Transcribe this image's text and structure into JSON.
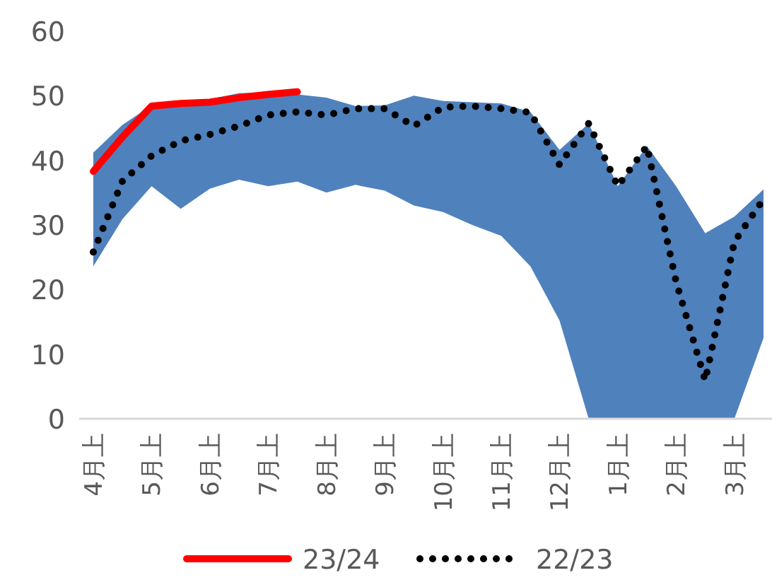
{
  "chart_data": {
    "type": "area",
    "categories": [
      "4月上",
      null,
      "5月上",
      null,
      "6月上",
      null,
      "7月上",
      null,
      "8月上",
      null,
      "9月上",
      null,
      "10月上",
      null,
      "11月上",
      null,
      "12月上",
      null,
      "1月上",
      null,
      "2月上",
      null,
      "3月上",
      null
    ],
    "series": [
      {
        "color": "#4f81bd",
        "values": [
          41.2,
          45.5,
          48.5,
          49,
          49.5,
          50.4,
          50.5,
          50.2,
          49.7,
          48.4,
          48.5,
          50,
          49.2,
          49,
          48.8,
          47.5,
          41.6,
          45.7,
          36,
          42.2,
          36,
          28.7,
          31.3,
          35.5
        ]
      },
      {
        "color": "#ffffff",
        "values": [
          23.6,
          30.9,
          36,
          32.5,
          35.6,
          37,
          36,
          36.7,
          35,
          36.2,
          35.3,
          33,
          32,
          30,
          28.3,
          23.6,
          15.2,
          0,
          0,
          0,
          0,
          0,
          0,
          12.5
        ]
      },
      {
        "type": "line",
        "name": "23/24",
        "color": "#ff0000",
        "line_style": "solid",
        "values": [
          38.3,
          43.6,
          48.4,
          48.8,
          49,
          49.7,
          50.2,
          50.6,
          null,
          null,
          null,
          null,
          null,
          null,
          null,
          null,
          null,
          null,
          null,
          null,
          null,
          null,
          null,
          null
        ]
      },
      {
        "type": "line",
        "name": "22/23",
        "color": "#000000",
        "line_style": "dotted",
        "values": [
          25.8,
          36.8,
          40.7,
          43,
          44,
          45.3,
          47,
          47.5,
          47,
          48,
          48,
          45.3,
          48.2,
          48.4,
          48,
          47.4,
          39.3,
          45.7,
          36,
          42.2,
          21.2,
          5.9,
          27.4,
          34
        ]
      }
    ],
    "ylim": [
      0,
      60
    ],
    "yticks": [
      0,
      10,
      20,
      30,
      40,
      50,
      60
    ],
    "legend": "bottom"
  }
}
